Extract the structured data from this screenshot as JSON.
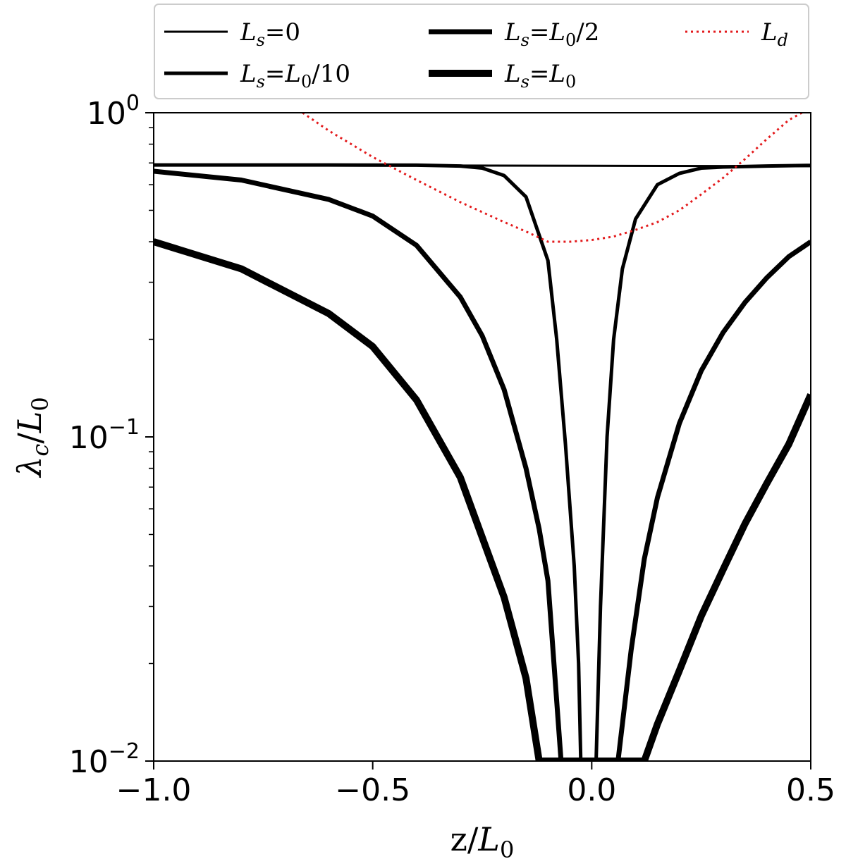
{
  "chart_data": {
    "type": "line",
    "title": "",
    "xlabel": {
      "main": "z/",
      "var": "L",
      "sub": "0"
    },
    "ylabel": {
      "main": "λ",
      "sub": "c",
      "sep": "/",
      "var": "L",
      "sub2": "0"
    },
    "xlim": [
      -1.0,
      0.5
    ],
    "ylim": [
      0.01,
      1.0
    ],
    "yscale": "log",
    "grid": false,
    "legend_position": "top",
    "x_ticks": [
      {
        "value": -1.0,
        "label": "−1.0"
      },
      {
        "value": -0.5,
        "label": "−0.5"
      },
      {
        "value": 0.0,
        "label": "0.0"
      },
      {
        "value": 0.5,
        "label": "0.5"
      }
    ],
    "y_ticks": [
      {
        "value": 0.01,
        "base": "10",
        "exp": "−2"
      },
      {
        "value": 0.1,
        "base": "10",
        "exp": "−1"
      },
      {
        "value": 1.0,
        "base": "10",
        "exp": "0"
      }
    ],
    "series": [
      {
        "name": "Ls = 0",
        "legend": {
          "lhs": "L",
          "lhs_sub": "s",
          "eq": "=",
          "rhs": "0",
          "rhs_sub": "",
          "rhs_tail": ""
        },
        "color": "#000000",
        "style": "solid",
        "weight": 1,
        "x": [
          -1.0,
          -0.5,
          0.0,
          0.5
        ],
        "y": [
          0.69,
          0.688,
          0.686,
          0.684
        ]
      },
      {
        "name": "Ls = L0/10",
        "legend": {
          "lhs": "L",
          "lhs_sub": "s",
          "eq": "=",
          "rhs": "L",
          "rhs_sub": "0",
          "rhs_tail": "/10"
        },
        "color": "#000000",
        "style": "solid",
        "weight": 2,
        "x": [
          -1.0,
          -0.6,
          -0.4,
          -0.3,
          -0.25,
          -0.2,
          -0.15,
          -0.1,
          -0.08,
          -0.06,
          -0.04,
          -0.03,
          -0.025,
          0.01,
          0.02,
          0.035,
          0.05,
          0.07,
          0.1,
          0.15,
          0.2,
          0.25,
          0.3,
          0.4,
          0.5
        ],
        "y": [
          0.69,
          0.69,
          0.689,
          0.685,
          0.675,
          0.64,
          0.55,
          0.35,
          0.2,
          0.095,
          0.04,
          0.02,
          0.01,
          0.01,
          0.03,
          0.1,
          0.2,
          0.33,
          0.47,
          0.6,
          0.65,
          0.675,
          0.68,
          0.685,
          0.688
        ]
      },
      {
        "name": "Ls = L0/2",
        "legend": {
          "lhs": "L",
          "lhs_sub": "s",
          "eq": "=",
          "rhs": "L",
          "rhs_sub": "0",
          "rhs_tail": "/2"
        },
        "color": "#000000",
        "style": "solid",
        "weight": 3,
        "x": [
          -1.0,
          -0.8,
          -0.6,
          -0.5,
          -0.4,
          -0.3,
          -0.25,
          -0.2,
          -0.15,
          -0.12,
          -0.1,
          -0.07,
          0.06,
          0.09,
          0.12,
          0.15,
          0.2,
          0.25,
          0.3,
          0.35,
          0.4,
          0.45,
          0.5
        ],
        "y": [
          0.66,
          0.62,
          0.54,
          0.48,
          0.39,
          0.27,
          0.205,
          0.14,
          0.08,
          0.052,
          0.036,
          0.01,
          0.01,
          0.022,
          0.042,
          0.065,
          0.11,
          0.16,
          0.21,
          0.26,
          0.31,
          0.36,
          0.4
        ]
      },
      {
        "name": "Ls = L0",
        "legend": {
          "lhs": "L",
          "lhs_sub": "s",
          "eq": "=",
          "rhs": "L",
          "rhs_sub": "0",
          "rhs_tail": ""
        },
        "color": "#000000",
        "style": "solid",
        "weight": 4,
        "x": [
          -1.0,
          -0.8,
          -0.6,
          -0.5,
          -0.4,
          -0.3,
          -0.2,
          -0.15,
          -0.12,
          0.12,
          0.15,
          0.2,
          0.25,
          0.3,
          0.35,
          0.4,
          0.45,
          0.5
        ],
        "y": [
          0.4,
          0.33,
          0.24,
          0.19,
          0.13,
          0.075,
          0.032,
          0.018,
          0.01,
          0.01,
          0.013,
          0.019,
          0.028,
          0.039,
          0.054,
          0.072,
          0.095,
          0.135
        ]
      },
      {
        "name": "Ld",
        "legend": {
          "lhs": "L",
          "lhs_sub": "d",
          "eq": "",
          "rhs": "",
          "rhs_sub": "",
          "rhs_tail": ""
        },
        "color": "#e31a1c",
        "style": "dotted",
        "weight": 1,
        "x": [
          -0.66,
          -0.6,
          -0.5,
          -0.4,
          -0.3,
          -0.2,
          -0.15,
          -0.1,
          -0.05,
          0.0,
          0.05,
          0.1,
          0.15,
          0.2,
          0.25,
          0.3,
          0.35,
          0.4,
          0.45,
          0.48
        ],
        "y": [
          1.0,
          0.88,
          0.73,
          0.62,
          0.53,
          0.46,
          0.43,
          0.4,
          0.4,
          0.405,
          0.415,
          0.435,
          0.46,
          0.5,
          0.56,
          0.63,
          0.72,
          0.83,
          0.95,
          1.0
        ]
      }
    ]
  }
}
